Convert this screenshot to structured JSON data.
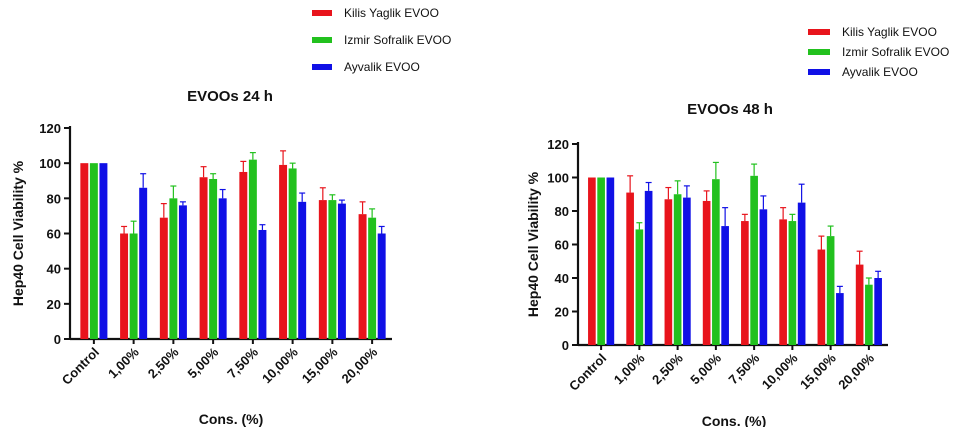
{
  "colors": {
    "kilis": "#e8141c",
    "izmir": "#22c11e",
    "ayvalik": "#1010e6"
  },
  "chart_data": [
    {
      "type": "bar",
      "title": "EVOOs 24 h",
      "xlabel": "Cons. (%)",
      "ylabel": "Hep40 Cell Viability %",
      "ylim": [
        0,
        120
      ],
      "yticks": [
        0,
        20,
        40,
        60,
        80,
        100,
        120
      ],
      "categories": [
        "Control",
        "1,00%",
        "2,50%",
        "5,00%",
        "7,50%",
        "10,00%",
        "15,00%",
        "20,00%"
      ],
      "legend_position": "top",
      "series": [
        {
          "name": "Kilis Yaglik EVOO",
          "color": "#e8141c",
          "values": [
            100,
            60,
            69,
            92,
            95,
            99,
            79,
            71
          ],
          "errors": [
            0,
            4,
            8,
            6,
            6,
            8,
            7,
            7
          ]
        },
        {
          "name": "Izmir Sofralik EVOO",
          "color": "#22c11e",
          "values": [
            100,
            60,
            80,
            91,
            102,
            97,
            79,
            69
          ],
          "errors": [
            0,
            7,
            7,
            3,
            4,
            3,
            3,
            5
          ]
        },
        {
          "name": "Ayvalik EVOO",
          "color": "#1010e6",
          "values": [
            100,
            86,
            76,
            80,
            62,
            78,
            77,
            60
          ],
          "errors": [
            0,
            8,
            2,
            5,
            3,
            5,
            2,
            4
          ]
        }
      ]
    },
    {
      "type": "bar",
      "title": "EVOOs 48 h",
      "xlabel": "Cons. (%)",
      "ylabel": "Hep40 Cell Viability %",
      "ylim": [
        0,
        120
      ],
      "yticks": [
        0,
        20,
        40,
        60,
        80,
        100,
        120
      ],
      "categories": [
        "Control",
        "1,00%",
        "2,50%",
        "5,00%",
        "7,50%",
        "10,00%",
        "15,00%",
        "20,00%"
      ],
      "legend_position": "top-right",
      "series": [
        {
          "name": "Kilis Yaglik EVOO",
          "color": "#e8141c",
          "values": [
            100,
            91,
            87,
            86,
            74,
            75,
            57,
            48
          ],
          "errors": [
            0,
            10,
            7,
            6,
            4,
            7,
            8,
            8
          ]
        },
        {
          "name": "Izmir Sofralik EVOO",
          "color": "#22c11e",
          "values": [
            100,
            69,
            90,
            99,
            101,
            74,
            65,
            36
          ],
          "errors": [
            0,
            4,
            8,
            10,
            7,
            4,
            6,
            4
          ]
        },
        {
          "name": "Ayvalik EVOO",
          "color": "#1010e6",
          "values": [
            100,
            92,
            88,
            71,
            81,
            85,
            31,
            40
          ],
          "errors": [
            0,
            5,
            7,
            11,
            8,
            11,
            4,
            4
          ]
        }
      ]
    }
  ]
}
